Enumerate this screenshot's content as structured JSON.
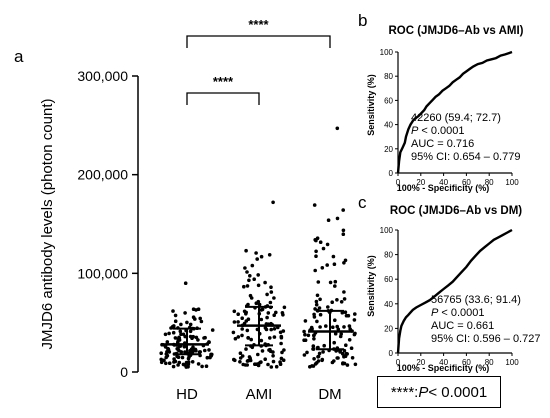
{
  "panel_letters": {
    "a": "a",
    "b": "b",
    "c": "c"
  },
  "footnote": {
    "stars": "****",
    "sep": ": ",
    "p": "P",
    "rest": " < 0.0001"
  },
  "chart_data": [
    {
      "type": "scatter",
      "ylabel": "JMJD6 antibody levels (photon count)",
      "ylim": [
        0,
        300000
      ],
      "yticks": [
        0,
        100000,
        200000,
        300000
      ],
      "ytick_labels": [
        "0",
        "100,000",
        "200,000",
        "300,000"
      ],
      "categories": [
        "HD",
        "AMI",
        "DM"
      ],
      "summary": [
        {
          "group": "HD",
          "median": 28000,
          "q1": 18000,
          "q3": 44000,
          "max": 90000,
          "n": 130
        },
        {
          "group": "AMI",
          "median": 47000,
          "q1": 27000,
          "q3": 66000,
          "max": 172000,
          "n": 130
        },
        {
          "group": "DM",
          "median": 41000,
          "q1": 23000,
          "q3": 62000,
          "max": 247000,
          "n": 130
        }
      ],
      "significance": [
        {
          "from": "HD",
          "to": "AMI",
          "label": "****"
        },
        {
          "from": "HD",
          "to": "DM",
          "label": "****"
        }
      ]
    },
    {
      "type": "line",
      "title": "ROC (JMJD6–Ab vs AMI)",
      "xlabel": "100% - Specificity (%)",
      "ylabel": "Sensitivity (%)",
      "xlim": [
        0,
        100
      ],
      "ylim": [
        0,
        100
      ],
      "ticks": [
        0,
        20,
        40,
        60,
        80,
        100
      ],
      "points": [
        [
          0,
          0
        ],
        [
          1,
          10
        ],
        [
          2,
          17
        ],
        [
          4,
          21
        ],
        [
          6,
          25
        ],
        [
          7,
          30
        ],
        [
          9,
          36
        ],
        [
          11,
          40
        ],
        [
          13,
          43
        ],
        [
          15,
          45
        ],
        [
          18,
          47
        ],
        [
          20,
          49
        ],
        [
          23,
          52
        ],
        [
          25,
          55
        ],
        [
          28,
          58
        ],
        [
          30,
          60
        ],
        [
          33,
          63
        ],
        [
          36,
          65
        ],
        [
          39,
          68
        ],
        [
          42,
          70
        ],
        [
          45,
          72
        ],
        [
          48,
          75
        ],
        [
          51,
          77
        ],
        [
          54,
          79
        ],
        [
          57,
          82
        ],
        [
          60,
          84
        ],
        [
          63,
          86
        ],
        [
          66,
          88
        ],
        [
          70,
          90
        ],
        [
          74,
          91
        ],
        [
          78,
          93
        ],
        [
          82,
          94
        ],
        [
          86,
          95
        ],
        [
          90,
          97
        ],
        [
          94,
          98
        ],
        [
          97,
          99
        ],
        [
          100,
          100
        ]
      ],
      "annotations": {
        "cutoff": "42260 (59.4; 72.7)",
        "p_label": "P",
        "p_value": " < 0.0001",
        "auc": "AUC = 0.716",
        "ci": "95% CI: 0.654 – 0.779"
      }
    },
    {
      "type": "line",
      "title": "ROC (JMJD6–Ab vs DM)",
      "xlabel": "100% - Specificity (%)",
      "ylabel": "Sensitivity (%)",
      "xlim": [
        0,
        100
      ],
      "ylim": [
        0,
        100
      ],
      "ticks": [
        0,
        20,
        40,
        60,
        80,
        100
      ],
      "points": [
        [
          0,
          0
        ],
        [
          1,
          12
        ],
        [
          2,
          18
        ],
        [
          3,
          22
        ],
        [
          5,
          26
        ],
        [
          7,
          29
        ],
        [
          9,
          31
        ],
        [
          11,
          33
        ],
        [
          13,
          35
        ],
        [
          16,
          37
        ],
        [
          20,
          39
        ],
        [
          24,
          41
        ],
        [
          28,
          43
        ],
        [
          32,
          46
        ],
        [
          36,
          49
        ],
        [
          40,
          52
        ],
        [
          44,
          55
        ],
        [
          48,
          58
        ],
        [
          52,
          62
        ],
        [
          56,
          66
        ],
        [
          60,
          70
        ],
        [
          64,
          75
        ],
        [
          68,
          79
        ],
        [
          72,
          83
        ],
        [
          76,
          86
        ],
        [
          80,
          89
        ],
        [
          84,
          92
        ],
        [
          88,
          94
        ],
        [
          92,
          96
        ],
        [
          96,
          98
        ],
        [
          100,
          100
        ]
      ],
      "annotations": {
        "cutoff": "56765 (33.6; 91.4)",
        "p_label": "P",
        "p_value": " < 0.0001",
        "auc": "AUC = 0.661",
        "ci": "95% CI: 0.596 – 0.727"
      }
    }
  ]
}
